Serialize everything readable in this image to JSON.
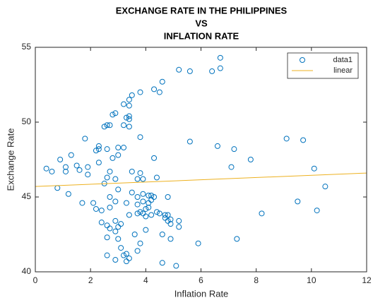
{
  "chart_data": {
    "type": "scatter",
    "title": [
      "EXCHANGE RATE IN THE PHILIPPINES",
      "VS",
      "INFLATION RATE"
    ],
    "xlabel": "Inflation Rate",
    "ylabel": "Exchange Rate",
    "xlim": [
      0,
      12
    ],
    "ylim": [
      40,
      55
    ],
    "xticks": [
      0,
      2,
      4,
      6,
      8,
      10,
      12
    ],
    "yticks": [
      40,
      45,
      50,
      55
    ],
    "grid": false,
    "legend": "top-right",
    "series": [
      {
        "name": "data1",
        "mode": "markers",
        "color": "#0072bd",
        "x": [
          0.4,
          0.6,
          0.8,
          0.9,
          1.1,
          1.1,
          1.2,
          1.3,
          1.5,
          1.6,
          1.7,
          1.8,
          1.9,
          1.9,
          2.1,
          2.2,
          2.2,
          2.3,
          2.3,
          2.3,
          2.4,
          2.4,
          2.5,
          2.5,
          2.6,
          2.6,
          2.6,
          2.6,
          2.6,
          2.6,
          2.7,
          2.7,
          2.7,
          2.7,
          2.7,
          2.8,
          2.8,
          2.9,
          2.9,
          2.9,
          2.9,
          2.9,
          2.9,
          3.0,
          3.0,
          3.0,
          3.0,
          3.0,
          3.1,
          3.1,
          3.2,
          3.2,
          3.2,
          3.2,
          3.3,
          3.3,
          3.3,
          3.3,
          3.4,
          3.4,
          3.4,
          3.4,
          3.4,
          3.4,
          3.4,
          3.5,
          3.5,
          3.5,
          3.6,
          3.7,
          3.7,
          3.7,
          3.7,
          3.7,
          3.8,
          3.8,
          3.8,
          3.8,
          3.8,
          3.9,
          3.9,
          3.9,
          3.9,
          4.0,
          4.0,
          4.0,
          4.1,
          4.1,
          4.1,
          4.2,
          4.2,
          4.2,
          4.3,
          4.3,
          4.3,
          4.4,
          4.4,
          4.5,
          4.5,
          4.6,
          4.6,
          4.6,
          4.7,
          4.7,
          4.8,
          4.8,
          4.8,
          4.9,
          4.9,
          4.9,
          5.1,
          5.2,
          5.2,
          5.2,
          5.6,
          5.6,
          5.9,
          6.4,
          6.6,
          6.7,
          6.7,
          7.1,
          7.2,
          7.3,
          7.8,
          8.2,
          9.1,
          9.5,
          9.7,
          10.1,
          10.2,
          10.5
        ],
        "values": [
          46.9,
          46.7,
          45.6,
          47.5,
          47.0,
          46.7,
          45.2,
          47.8,
          47.1,
          46.8,
          44.6,
          48.9,
          46.5,
          47.0,
          44.6,
          48.1,
          44.2,
          48.4,
          48.2,
          47.3,
          44.1,
          43.3,
          49.7,
          45.9,
          49.8,
          48.2,
          46.3,
          43.1,
          41.1,
          42.3,
          49.8,
          46.7,
          45.0,
          44.3,
          42.9,
          50.5,
          47.6,
          50.6,
          46.2,
          44.7,
          43.4,
          42.7,
          40.8,
          48.3,
          47.8,
          45.5,
          43.0,
          42.2,
          43.2,
          41.6,
          51.2,
          49.8,
          48.3,
          41.1,
          50.3,
          44.6,
          41.2,
          40.7,
          51.1,
          51.5,
          50.2,
          50.4,
          49.7,
          43.8,
          40.9,
          51.8,
          46.7,
          45.3,
          42.5,
          46.2,
          45.0,
          44.5,
          43.9,
          41.4,
          52.0,
          49.0,
          46.6,
          44.0,
          41.9,
          46.2,
          45.2,
          44.7,
          43.9,
          43.7,
          42.8,
          44.2,
          45.1,
          44.6,
          44.3,
          45.1,
          44.8,
          43.8,
          52.2,
          47.6,
          45.0,
          46.3,
          44.0,
          52.0,
          43.9,
          52.7,
          42.5,
          40.6,
          43.8,
          43.6,
          45.0,
          43.8,
          43.4,
          43.5,
          43.2,
          42.2,
          40.4,
          53.5,
          43.4,
          43.0,
          53.4,
          48.7,
          41.9,
          53.4,
          48.4,
          53.6,
          54.3,
          47.0,
          48.2,
          42.2,
          47.5,
          43.9,
          48.9,
          44.7,
          48.8,
          46.9,
          44.1,
          45.7
        ]
      },
      {
        "name": "linear",
        "mode": "line",
        "color": "#edb120",
        "x": [
          0,
          12
        ],
        "values": [
          45.7,
          46.6
        ]
      }
    ]
  }
}
